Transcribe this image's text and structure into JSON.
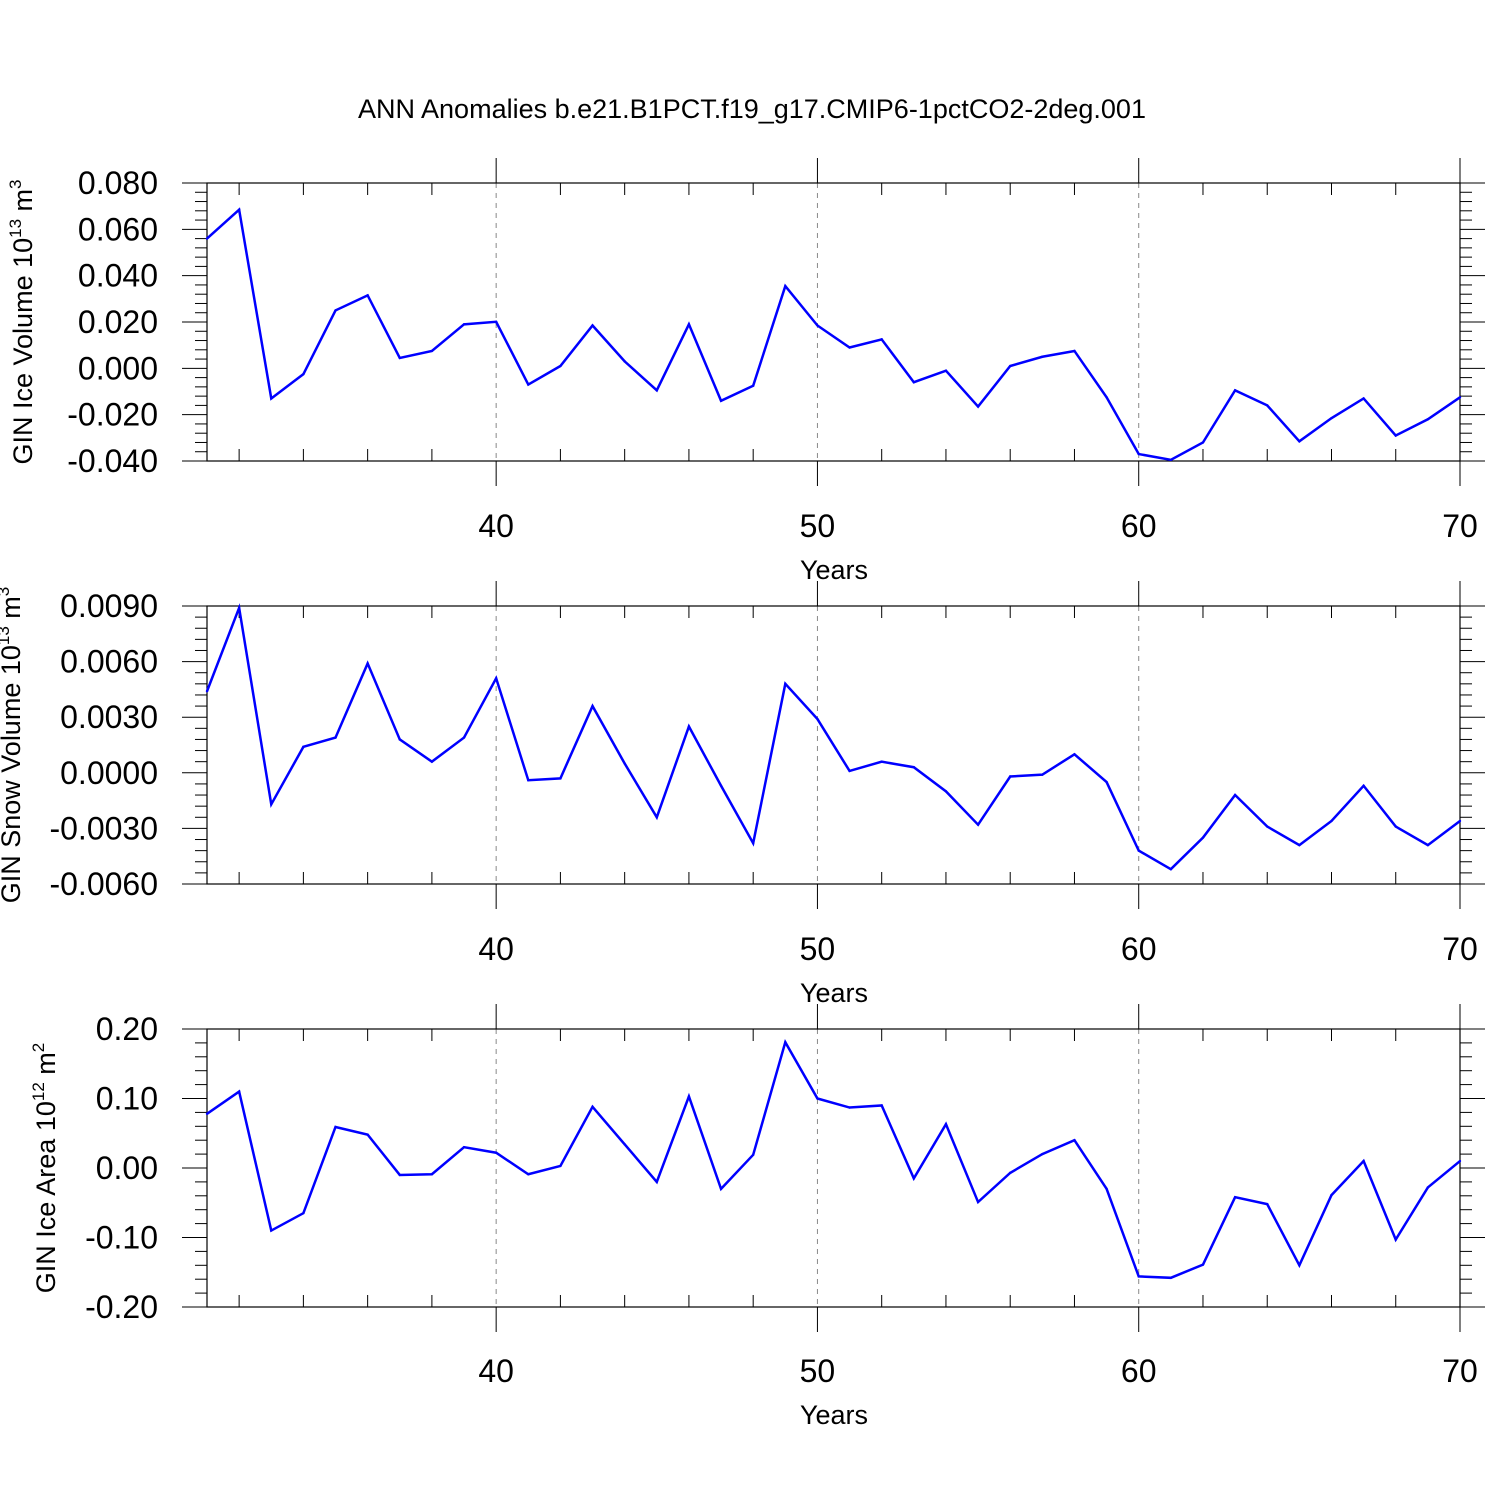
{
  "title": "ANN Anomalies b.e21.B1PCT.f19_g17.CMIP6-1pctCO2-2deg.001",
  "colors": {
    "line": "#0000ff",
    "axis": "#000000",
    "grid": "#888888"
  },
  "chart_data": [
    {
      "type": "line",
      "ylabel_text": "GIN Ice Volume 10",
      "ylabel_exp": "13",
      "ylabel_unit": " m",
      "ylabel_unit_exp": "3",
      "xlabel": "Years",
      "xlim": [
        31,
        70
      ],
      "ylim": [
        -0.04,
        0.08
      ],
      "yticks": [
        -0.04,
        -0.02,
        0.0,
        0.02,
        0.04,
        0.06,
        0.08
      ],
      "ytick_labels": [
        "-0.040",
        "-0.020",
        "0.000",
        "0.020",
        "0.040",
        "0.060",
        "0.080"
      ],
      "xticks": [
        40,
        50,
        60,
        70
      ],
      "xtick_labels": [
        "40",
        "50",
        "60",
        "70"
      ],
      "grid_x": [
        40,
        50,
        60
      ],
      "x": [
        31,
        32,
        33,
        34,
        35,
        36,
        37,
        38,
        39,
        40,
        41,
        42,
        43,
        44,
        45,
        46,
        47,
        48,
        49,
        50,
        51,
        52,
        53,
        54,
        55,
        56,
        57,
        58,
        59,
        60,
        61,
        62,
        63,
        64,
        65,
        66,
        67,
        68,
        69,
        70
      ],
      "series": [
        {
          "name": "GIN Ice Volume",
          "values": [
            0.056,
            0.0685,
            -0.013,
            -0.0025,
            0.025,
            0.0315,
            0.0045,
            0.0075,
            0.019,
            0.0201,
            -0.007,
            0.001,
            0.0185,
            0.003,
            -0.0095,
            0.019,
            -0.014,
            -0.0075,
            0.0355,
            0.0185,
            0.009,
            0.0125,
            -0.006,
            -0.001,
            -0.0165,
            0.001,
            0.005,
            0.0075,
            -0.0125,
            -0.037,
            -0.0395,
            -0.032,
            -0.0095,
            -0.016,
            -0.0315,
            -0.0215,
            -0.013,
            -0.029,
            -0.022,
            -0.0125
          ]
        }
      ]
    },
    {
      "type": "line",
      "ylabel_text": "GIN Snow Volume 10",
      "ylabel_exp": "13",
      "ylabel_unit": " m",
      "ylabel_unit_exp": "3",
      "xlabel": "Years",
      "xlim": [
        31,
        70
      ],
      "ylim": [
        -0.006,
        0.009
      ],
      "yticks": [
        -0.006,
        -0.003,
        0.0,
        0.003,
        0.006,
        0.009
      ],
      "ytick_labels": [
        "-0.0060",
        "-0.0030",
        "0.0000",
        "0.0030",
        "0.0060",
        "0.0090"
      ],
      "xticks": [
        40,
        50,
        60,
        70
      ],
      "xtick_labels": [
        "40",
        "50",
        "60",
        "70"
      ],
      "grid_x": [
        40,
        50,
        60
      ],
      "x": [
        31,
        32,
        33,
        34,
        35,
        36,
        37,
        38,
        39,
        40,
        41,
        42,
        43,
        44,
        45,
        46,
        47,
        48,
        49,
        50,
        51,
        52,
        53,
        54,
        55,
        56,
        57,
        58,
        59,
        60,
        61,
        62,
        63,
        64,
        65,
        66,
        67,
        68,
        69,
        70
      ],
      "series": [
        {
          "name": "GIN Snow Volume",
          "values": [
            0.0044,
            0.0089,
            -0.0017,
            0.0014,
            0.0019,
            0.0059,
            0.0018,
            0.0006,
            0.0019,
            0.0051,
            -0.0004,
            -0.0003,
            0.0036,
            0.0005,
            -0.0024,
            0.0025,
            -0.0007,
            -0.0038,
            0.0048,
            0.0029,
            0.0001,
            0.0006,
            0.0003,
            -0.001,
            -0.0028,
            -0.0002,
            -0.0001,
            0.001,
            -0.0005,
            -0.0042,
            -0.0052,
            -0.0035,
            -0.0012,
            -0.0029,
            -0.0039,
            -0.0026,
            -0.0007,
            -0.0029,
            -0.0039,
            -0.0026
          ]
        }
      ]
    },
    {
      "type": "line",
      "ylabel_text": "GIN Ice Area 10",
      "ylabel_exp": "12",
      "ylabel_unit": " m",
      "ylabel_unit_exp": "2",
      "xlabel": "Years",
      "xlim": [
        31,
        70
      ],
      "ylim": [
        -0.2,
        0.2
      ],
      "yticks": [
        -0.2,
        -0.1,
        0.0,
        0.1,
        0.2
      ],
      "ytick_labels": [
        "-0.20",
        "-0.10",
        "0.00",
        "0.10",
        "0.20"
      ],
      "xticks": [
        40,
        50,
        60,
        70
      ],
      "xtick_labels": [
        "40",
        "50",
        "60",
        "70"
      ],
      "grid_x": [
        40,
        50,
        60
      ],
      "x": [
        31,
        32,
        33,
        34,
        35,
        36,
        37,
        38,
        39,
        40,
        41,
        42,
        43,
        44,
        45,
        46,
        47,
        48,
        49,
        50,
        51,
        52,
        53,
        54,
        55,
        56,
        57,
        58,
        59,
        60,
        61,
        62,
        63,
        64,
        65,
        66,
        67,
        68,
        69,
        70
      ],
      "series": [
        {
          "name": "GIN Ice Area",
          "values": [
            0.078,
            0.11,
            -0.09,
            -0.065,
            0.059,
            0.048,
            -0.01,
            -0.009,
            0.03,
            0.022,
            -0.009,
            0.003,
            0.088,
            0.034,
            -0.02,
            0.103,
            -0.03,
            0.019,
            0.181,
            0.1,
            0.087,
            0.09,
            -0.015,
            0.063,
            -0.049,
            -0.007,
            0.02,
            0.04,
            -0.03,
            -0.156,
            -0.158,
            -0.139,
            -0.042,
            -0.052,
            -0.14,
            -0.039,
            0.01,
            -0.103,
            -0.028,
            0.01
          ]
        }
      ]
    }
  ]
}
